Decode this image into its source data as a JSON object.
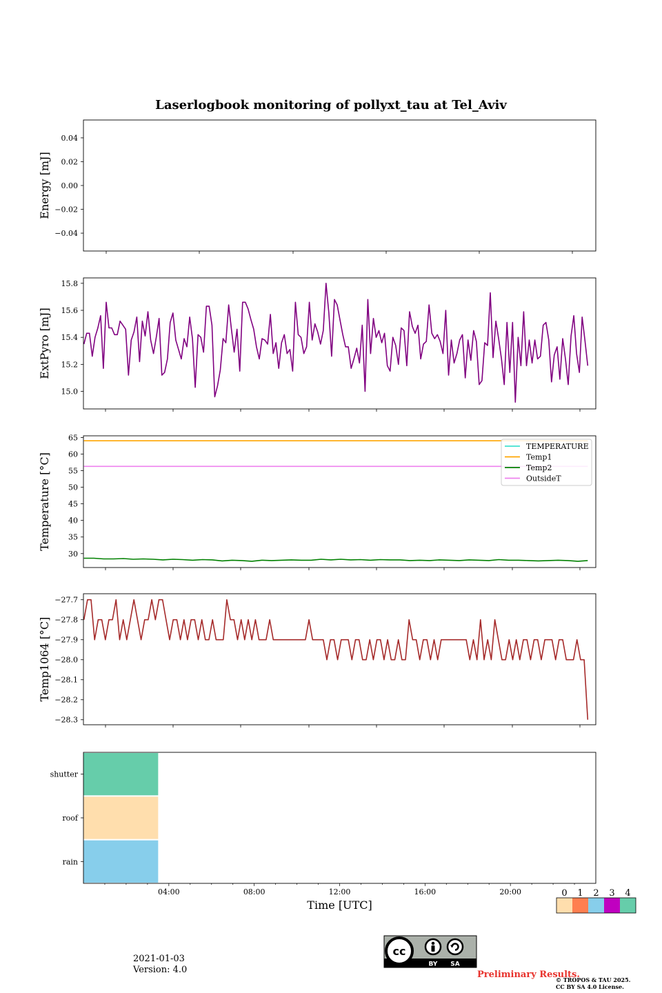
{
  "page": {
    "title": "Laserlogbook monitoring of pollyxt_tau at Tel_Aviv",
    "date": "2021-01-03",
    "version": "Version: 4.0",
    "preliminary": "Preliminary Results.",
    "copyright_line1": "© TROPOS & TAU 2025.",
    "copyright_line2": "CC BY SA 4.0 License.",
    "license_badge": {
      "cc": "cc",
      "by": "BY",
      "sa": "SA"
    }
  },
  "chart_data": [
    {
      "type": "line",
      "ylabel": "Energy [mJ]",
      "ylim": [
        -0.055,
        0.055
      ],
      "yticks": [
        0.04,
        0.02,
        0.0,
        -0.02,
        -0.04
      ],
      "ytick_labels": [
        "0.04",
        "0.02",
        "0.00",
        "−0.02",
        "−0.04"
      ],
      "series": []
    },
    {
      "type": "line",
      "ylabel": "ExtPyro [mJ]",
      "ylim": [
        14.87,
        15.84
      ],
      "yticks": [
        15.8,
        15.6,
        15.4,
        15.2,
        15.0
      ],
      "ytick_labels": [
        "15.8",
        "15.6",
        "15.4",
        "15.2",
        "15.0"
      ],
      "x_range_hours": [
        0.8,
        23.0
      ],
      "series": [
        {
          "color": "#800080",
          "t_start": 0.82,
          "t_end": 22.65,
          "values": [
            15.35,
            15.43,
            15.43,
            15.26,
            15.4,
            15.47,
            15.56,
            15.17,
            15.66,
            15.47,
            15.47,
            15.42,
            15.42,
            15.52,
            15.49,
            15.46,
            15.12,
            15.38,
            15.44,
            15.55,
            15.22,
            15.52,
            15.41,
            15.59,
            15.38,
            15.28,
            15.4,
            15.54,
            15.12,
            15.14,
            15.24,
            15.51,
            15.58,
            15.38,
            15.31,
            15.24,
            15.39,
            15.33,
            15.55,
            15.39,
            15.03,
            15.42,
            15.4,
            15.29,
            15.63,
            15.63,
            15.49,
            14.96,
            15.04,
            15.16,
            15.39,
            15.36,
            15.64,
            15.46,
            15.29,
            15.46,
            15.15,
            15.66,
            15.66,
            15.61,
            15.53,
            15.46,
            15.33,
            15.24,
            15.39,
            15.38,
            15.35,
            15.57,
            15.28,
            15.36,
            15.17,
            15.36,
            15.42,
            15.28,
            15.31,
            15.15,
            15.66,
            15.42,
            15.4,
            15.28,
            15.33,
            15.66,
            15.38,
            15.5,
            15.44,
            15.35,
            15.45,
            15.8,
            15.58,
            15.26,
            15.68,
            15.64,
            15.53,
            15.42,
            15.33,
            15.33,
            15.17,
            15.24,
            15.32,
            15.21,
            15.49,
            15.0,
            15.68,
            15.28,
            15.54,
            15.4,
            15.45,
            15.36,
            15.43,
            15.19,
            15.15,
            15.4,
            15.34,
            15.2,
            15.47,
            15.45,
            15.19,
            15.59,
            15.48,
            15.43,
            15.49,
            15.24,
            15.35,
            15.37,
            15.64,
            15.43,
            15.39,
            15.42,
            15.37,
            15.28,
            15.6,
            15.12,
            15.38,
            15.21,
            15.28,
            15.38,
            15.42,
            15.1,
            15.38,
            15.23,
            15.45,
            15.37,
            15.05,
            15.08,
            15.36,
            15.34,
            15.73,
            15.25,
            15.52,
            15.39,
            15.24,
            15.05,
            15.51,
            15.14,
            15.51,
            14.92,
            15.4,
            15.19,
            15.59,
            15.19,
            15.38,
            15.21,
            15.38,
            15.24,
            15.26,
            15.49,
            15.51,
            15.38,
            15.07,
            15.27,
            15.33,
            15.09,
            15.39,
            15.24,
            15.05,
            15.41,
            15.56,
            15.28,
            15.14,
            15.55,
            15.38,
            15.19
          ]
        }
      ]
    },
    {
      "type": "line",
      "ylabel": "Temperature [°C]",
      "ylim": [
        25.8,
        65.5
      ],
      "yticks": [
        65,
        60,
        55,
        50,
        45,
        40,
        35,
        30
      ],
      "ytick_labels": [
        "65",
        "60",
        "55",
        "50",
        "45",
        "40",
        "35",
        "30"
      ],
      "x_range_hours": [
        0.8,
        23.0
      ],
      "legend": "top-right",
      "series": [
        {
          "name": "TEMPERATURE",
          "color": "#40e0d0",
          "t_start": 0.82,
          "t_end": 22.65,
          "values": []
        },
        {
          "name": "Temp1",
          "color": "#ffa500",
          "t_start": 0.82,
          "t_end": 22.65,
          "values": [
            64,
            64
          ]
        },
        {
          "name": "Temp2",
          "color": "#008000",
          "t_start": 0.82,
          "t_end": 22.65,
          "values": [
            28.6,
            28.6,
            28.4,
            28.4,
            28.5,
            28.3,
            28.4,
            28.3,
            28.1,
            28.3,
            28.2,
            28.0,
            28.2,
            28.1,
            27.8,
            28.0,
            27.9,
            27.7,
            28.0,
            27.9,
            28.0,
            28.1,
            28.0,
            28.0,
            28.3,
            28.1,
            28.3,
            28.1,
            28.2,
            28.0,
            28.2,
            28.1,
            28.1,
            27.9,
            28.0,
            27.9,
            28.1,
            28.0,
            27.9,
            28.1,
            28.0,
            27.9,
            28.2,
            28.0,
            28.0,
            27.9,
            27.8,
            27.9,
            28.0,
            27.9,
            27.7,
            27.9
          ]
        },
        {
          "name": "OutsideT",
          "color": "#ee82ee",
          "t_start": 0.82,
          "t_end": 22.65,
          "values": [
            56.3,
            56.3
          ]
        }
      ]
    },
    {
      "type": "line",
      "ylabel": "Temp1064 [°C]",
      "ylim": [
        -28.325,
        -27.67
      ],
      "yticks": [
        -27.7,
        -27.8,
        -27.9,
        -28.0,
        -28.1,
        -28.2,
        -28.3
      ],
      "ytick_labels": [
        "−27.7",
        "−27.8",
        "−27.9",
        "−28.0",
        "−28.1",
        "−28.2",
        "−28.3"
      ],
      "x_range_hours": [
        0.8,
        23.0
      ],
      "series": [
        {
          "color": "#a52a2a",
          "t_start": 0.82,
          "t_end": 22.65,
          "values": [
            -27.8,
            -27.7,
            -27.7,
            -27.9,
            -27.8,
            -27.8,
            -27.9,
            -27.8,
            -27.8,
            -27.7,
            -27.9,
            -27.8,
            -27.9,
            -27.8,
            -27.7,
            -27.8,
            -27.9,
            -27.8,
            -27.8,
            -27.7,
            -27.8,
            -27.7,
            -27.7,
            -27.8,
            -27.9,
            -27.8,
            -27.8,
            -27.9,
            -27.8,
            -27.9,
            -27.8,
            -27.8,
            -27.9,
            -27.8,
            -27.9,
            -27.9,
            -27.8,
            -27.9,
            -27.9,
            -27.9,
            -27.7,
            -27.8,
            -27.8,
            -27.9,
            -27.8,
            -27.9,
            -27.8,
            -27.9,
            -27.8,
            -27.9,
            -27.9,
            -27.9,
            -27.8,
            -27.9,
            -27.9,
            -27.9,
            -27.9,
            -27.9,
            -27.9,
            -27.9,
            -27.9,
            -27.9,
            -27.9,
            -27.8,
            -27.9,
            -27.9,
            -27.9,
            -27.9,
            -28.0,
            -27.9,
            -27.9,
            -28.0,
            -27.9,
            -27.9,
            -27.9,
            -28.0,
            -27.9,
            -27.9,
            -28.0,
            -28.0,
            -27.9,
            -28.0,
            -27.9,
            -27.9,
            -28.0,
            -27.9,
            -28.0,
            -28.0,
            -27.9,
            -28.0,
            -28.0,
            -27.8,
            -27.9,
            -27.9,
            -28.0,
            -27.9,
            -27.9,
            -28.0,
            -27.9,
            -28.0,
            -27.9,
            -27.9,
            -27.9,
            -27.9,
            -27.9,
            -27.9,
            -27.9,
            -27.9,
            -28.0,
            -27.9,
            -28.0,
            -27.8,
            -28.0,
            -27.9,
            -28.0,
            -27.8,
            -27.9,
            -28.0,
            -28.0,
            -27.9,
            -28.0,
            -27.9,
            -28.0,
            -27.9,
            -27.9,
            -28.0,
            -27.9,
            -27.9,
            -28.0,
            -27.9,
            -27.9,
            -27.9,
            -28.0,
            -27.9,
            -27.9,
            -28.0,
            -28.0,
            -28.0,
            -27.9,
            -28.0,
            -28.0,
            -28.3
          ]
        }
      ]
    },
    {
      "type": "heatmap",
      "xlabel": "Time [UTC]",
      "rows": [
        "shutter",
        "roof",
        "rain"
      ],
      "x_range_hours": [
        0.0,
        24.0
      ],
      "xticks_hours": [
        4,
        8,
        12,
        16,
        20
      ],
      "xtick_labels": [
        "04:00",
        "08:00",
        "12:00",
        "16:00",
        "20:00"
      ],
      "segments": [
        {
          "row": "shutter",
          "start_hour": 0.0,
          "end_hour": 3.5,
          "status": 4
        },
        {
          "row": "roof",
          "start_hour": 0.0,
          "end_hour": 3.5,
          "status": 0
        },
        {
          "row": "rain",
          "start_hour": 0.0,
          "end_hour": 3.5,
          "status": 2
        }
      ],
      "colorbar": {
        "labels": [
          "0",
          "1",
          "2",
          "3",
          "4"
        ],
        "colors": [
          "#ffdead",
          "#ff7f50",
          "#87ceeb",
          "#c000c0",
          "#66cdaa"
        ]
      }
    }
  ]
}
